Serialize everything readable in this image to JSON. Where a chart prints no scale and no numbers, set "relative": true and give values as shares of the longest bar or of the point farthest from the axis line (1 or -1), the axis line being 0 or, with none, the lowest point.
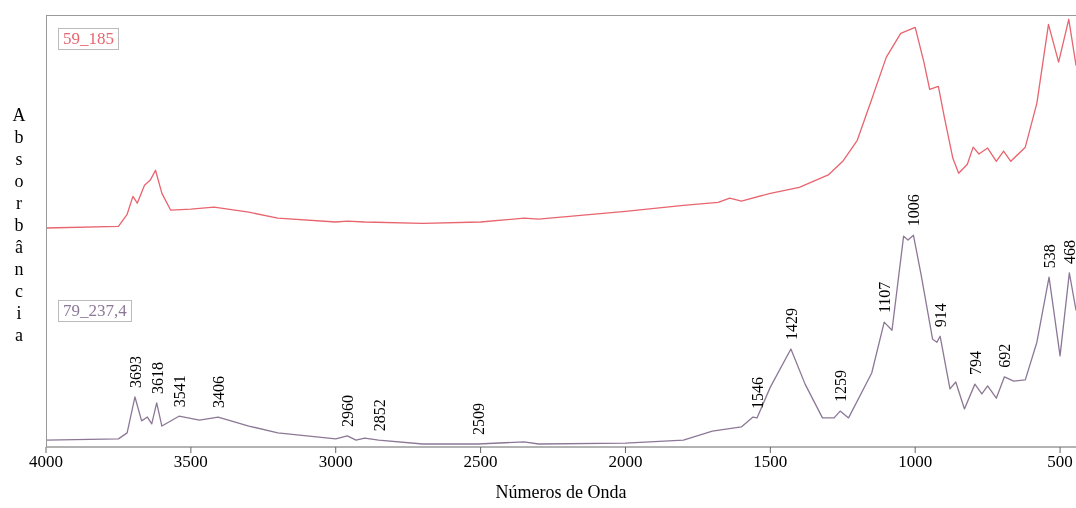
{
  "chart_data": {
    "type": "line",
    "relative": true,
    "xlabel": "Números de Onda",
    "ylabel": "Absorbância",
    "xlim": [
      4000,
      445
    ],
    "xticks": [
      4000,
      3500,
      3000,
      2500,
      2000,
      1500,
      1000,
      500
    ],
    "marker": "none",
    "line_style": "solid",
    "series": [
      {
        "name": "59_185",
        "color": "#e8646e",
        "x": [
          4000,
          3750,
          3720,
          3700,
          3685,
          3660,
          3640,
          3622,
          3600,
          3570,
          3500,
          3420,
          3300,
          3200,
          3000,
          2960,
          2900,
          2700,
          2500,
          2350,
          2300,
          2000,
          1800,
          1680,
          1640,
          1600,
          1500,
          1400,
          1300,
          1250,
          1200,
          1150,
          1100,
          1050,
          1000,
          970,
          950,
          920,
          900,
          870,
          850,
          820,
          800,
          780,
          750,
          720,
          695,
          670,
          620,
          580,
          540,
          505,
          470,
          445
        ],
        "values": [
          0.512,
          0.516,
          0.544,
          0.586,
          0.57,
          0.612,
          0.624,
          0.647,
          0.593,
          0.554,
          0.556,
          0.561,
          0.549,
          0.535,
          0.526,
          0.528,
          0.526,
          0.523,
          0.526,
          0.535,
          0.533,
          0.551,
          0.565,
          0.572,
          0.582,
          0.575,
          0.593,
          0.607,
          0.636,
          0.668,
          0.717,
          0.813,
          0.911,
          0.967,
          0.981,
          0.9,
          0.836,
          0.843,
          0.773,
          0.675,
          0.64,
          0.661,
          0.701,
          0.685,
          0.699,
          0.668,
          0.692,
          0.668,
          0.701,
          0.804,
          0.988,
          0.9,
          1.0,
          0.893
        ]
      },
      {
        "name": "79_237,4",
        "color": "#8c7896",
        "x": [
          4000,
          3750,
          3720,
          3693,
          3670,
          3650,
          3635,
          3618,
          3600,
          3541,
          3470,
          3406,
          3300,
          3200,
          3000,
          2960,
          2930,
          2900,
          2852,
          2700,
          2509,
          2350,
          2300,
          2000,
          1800,
          1700,
          1600,
          1560,
          1546,
          1500,
          1429,
          1380,
          1320,
          1280,
          1259,
          1230,
          1150,
          1107,
          1080,
          1040,
          1025,
          1006,
          980,
          940,
          925,
          914,
          880,
          860,
          830,
          794,
          770,
          750,
          720,
          692,
          660,
          620,
          580,
          538,
          500,
          468,
          445
        ],
        "values": [
          0.016,
          0.019,
          0.033,
          0.117,
          0.061,
          0.07,
          0.054,
          0.103,
          0.049,
          0.072,
          0.063,
          0.07,
          0.049,
          0.033,
          0.019,
          0.026,
          0.016,
          0.021,
          0.016,
          0.007,
          0.007,
          0.012,
          0.007,
          0.009,
          0.016,
          0.037,
          0.047,
          0.07,
          0.068,
          0.14,
          0.229,
          0.147,
          0.068,
          0.068,
          0.084,
          0.068,
          0.173,
          0.292,
          0.273,
          0.493,
          0.484,
          0.495,
          0.404,
          0.252,
          0.245,
          0.259,
          0.136,
          0.152,
          0.089,
          0.147,
          0.124,
          0.143,
          0.114,
          0.164,
          0.154,
          0.157,
          0.245,
          0.397,
          0.213,
          0.407,
          0.32
        ]
      }
    ],
    "annotations": [
      {
        "text": "3693",
        "x": 3693,
        "y": 0.117
      },
      {
        "text": "3618",
        "x": 3618,
        "y": 0.103
      },
      {
        "text": "3541",
        "x": 3541,
        "y": 0.072
      },
      {
        "text": "3406",
        "x": 3406,
        "y": 0.07
      },
      {
        "text": "2960",
        "x": 2960,
        "y": 0.026
      },
      {
        "text": "2852",
        "x": 2852,
        "y": 0.016
      },
      {
        "text": "2509",
        "x": 2509,
        "y": 0.007
      },
      {
        "text": "1546",
        "x": 1546,
        "y": 0.068
      },
      {
        "text": "1429",
        "x": 1429,
        "y": 0.229
      },
      {
        "text": "1259",
        "x": 1259,
        "y": 0.084
      },
      {
        "text": "1107",
        "x": 1107,
        "y": 0.292
      },
      {
        "text": "1006",
        "x": 1006,
        "y": 0.495
      },
      {
        "text": "914",
        "x": 914,
        "y": 0.259
      },
      {
        "text": "794",
        "x": 794,
        "y": 0.147
      },
      {
        "text": "692",
        "x": 692,
        "y": 0.164
      },
      {
        "text": "538",
        "x": 538,
        "y": 0.397
      },
      {
        "text": "468",
        "x": 468,
        "y": 0.407
      }
    ]
  }
}
